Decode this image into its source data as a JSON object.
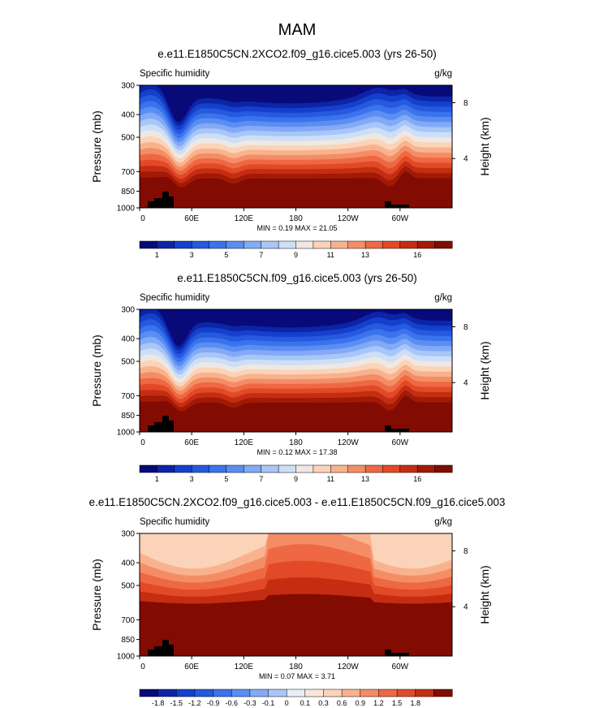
{
  "figure_title": "MAM",
  "chart_data": [
    {
      "type": "contour",
      "title": "e.e11.E1850C5CN.2XCO2.f09_g16.cice5.003 (yrs 26-50)",
      "left_label": "Specific humidity",
      "units": "g/kg",
      "ylabel": "Pressure (mb)",
      "y2label": "Height (km)",
      "y_ticks": [
        300,
        400,
        500,
        700,
        850,
        1000
      ],
      "y2_ticks": [
        "8",
        "4"
      ],
      "x_ticks": [
        "0",
        "60E",
        "120E",
        "180",
        "120W",
        "60W"
      ],
      "stats": "MIN =  0.19  MAX = 21.05",
      "colorbar_labels": [
        "1",
        "3",
        "5",
        "7",
        "9",
        "11",
        "13",
        "16"
      ],
      "colors": [
        "#070a78",
        "#0b24a8",
        "#1540cc",
        "#2459e0",
        "#3b73ec",
        "#5b8ef2",
        "#82aaf6",
        "#a9c6f8",
        "#cddff8",
        "#efe8e2",
        "#fbd3b8",
        "#f8b28e",
        "#f48d66",
        "#ee6843",
        "#e24a27",
        "#c52d12",
        "#a11a06",
        "#820b02"
      ],
      "diff": false
    },
    {
      "type": "contour",
      "title": "e.e11.E1850C5CN.f09_g16.cice5.003 (yrs 26-50)",
      "left_label": "Specific humidity",
      "units": "g/kg",
      "ylabel": "Pressure (mb)",
      "y2label": "Height (km)",
      "y_ticks": [
        300,
        400,
        500,
        700,
        850,
        1000
      ],
      "y2_ticks": [
        "8",
        "4"
      ],
      "x_ticks": [
        "0",
        "60E",
        "120E",
        "180",
        "120W",
        "60W"
      ],
      "stats": "MIN =  0.12  MAX = 17.38",
      "colorbar_labels": [
        "1",
        "3",
        "5",
        "7",
        "9",
        "11",
        "13",
        "16"
      ],
      "colors": [
        "#070a78",
        "#0b24a8",
        "#1540cc",
        "#2459e0",
        "#3b73ec",
        "#5b8ef2",
        "#82aaf6",
        "#a9c6f8",
        "#cddff8",
        "#efe8e2",
        "#fbd3b8",
        "#f8b28e",
        "#f48d66",
        "#ee6843",
        "#e24a27",
        "#c52d12",
        "#a11a06",
        "#820b02"
      ],
      "diff": false
    },
    {
      "type": "contour",
      "title": "e.e11.E1850C5CN.2XCO2.f09_g16.cice5.003 - e.e11.E1850C5CN.f09_g16.cice5.003",
      "left_label": "Specific humidity",
      "units": "g/kg",
      "ylabel": "Pressure (mb)",
      "y2label": "Height (km)",
      "y_ticks": [
        300,
        400,
        500,
        700,
        850,
        1000
      ],
      "y2_ticks": [
        "8",
        "4"
      ],
      "x_ticks": [
        "0",
        "60E",
        "120E",
        "180",
        "120W",
        "60W"
      ],
      "stats": "MIN =  0.07  MAX =  3.71",
      "colorbar_labels": [
        "-1.8",
        "-1.5",
        "-1.2",
        "-0.9",
        "-0.6",
        "-0.3",
        "-0.1",
        "0",
        "0.1",
        "0.3",
        "0.6",
        "0.9",
        "1.2",
        "1.5",
        "1.8"
      ],
      "colors": [
        "#070a78",
        "#0b24a8",
        "#1540cc",
        "#2459e0",
        "#3b73ec",
        "#5b8ef2",
        "#82aaf6",
        "#a9c6f8",
        "#e8eef8",
        "#fbe6dc",
        "#fbd3b8",
        "#f8b28e",
        "#f48d66",
        "#ee6843",
        "#e24a27",
        "#c52d12",
        "#820b02"
      ],
      "diff": true
    }
  ]
}
